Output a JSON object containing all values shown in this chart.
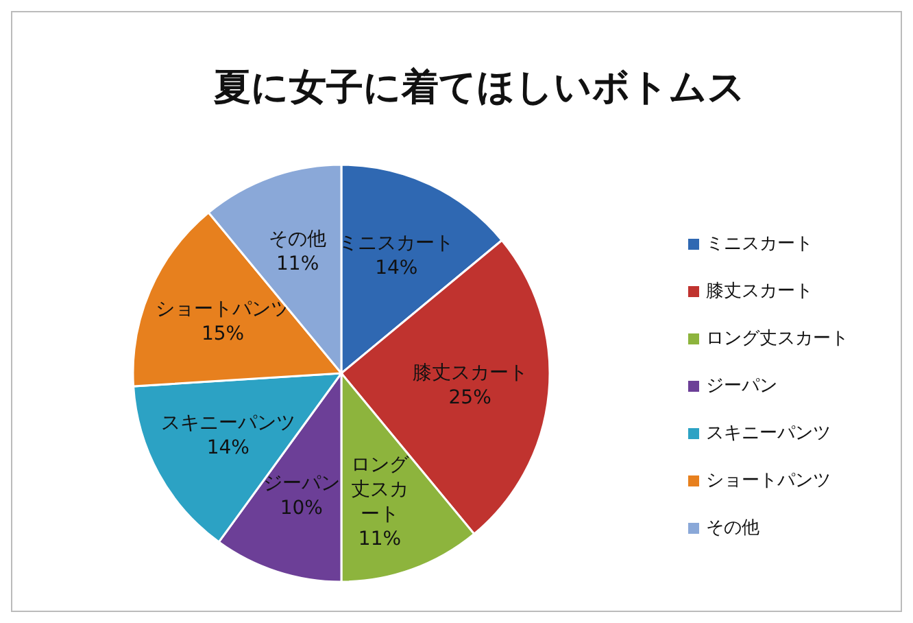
{
  "chart_data": {
    "type": "pie",
    "title": "夏に女子に着てほしいボトムス",
    "categories": [
      "ミニスカート",
      "膝丈スカート",
      "ロング丈スカート",
      "ジーパン",
      "スキニーパンツ",
      "ショートパンツ",
      "その他"
    ],
    "values": [
      14,
      25,
      11,
      10,
      14,
      15,
      11
    ],
    "value_labels": [
      "14%",
      "25%",
      "11%",
      "10%",
      "14%",
      "15%",
      "11%"
    ],
    "colors": [
      "#2f68b2",
      "#c0332f",
      "#8db43d",
      "#6c3f97",
      "#2ca2c4",
      "#e7801e",
      "#8aa8d8"
    ],
    "legend": "right"
  }
}
